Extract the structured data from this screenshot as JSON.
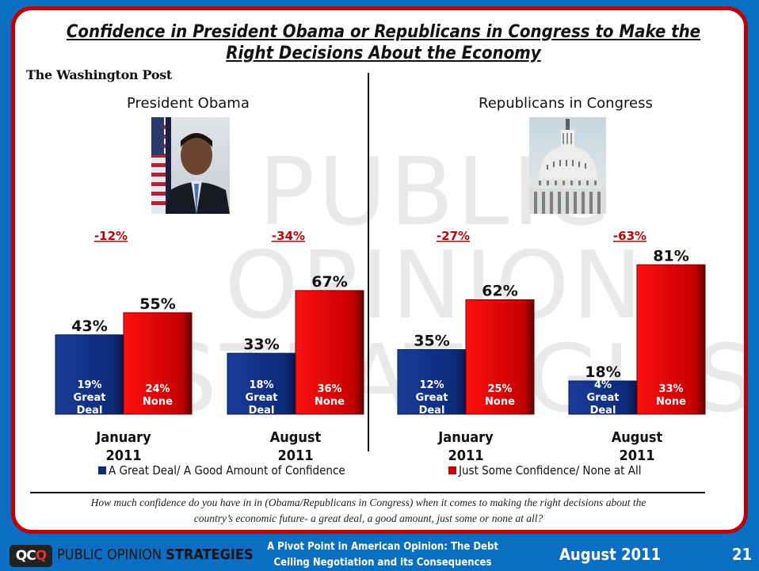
{
  "slide": {
    "title_line1": "Confidence in President Obama or Republicans in Congress to Make the",
    "title_line2": "Right Decisions About the Economy",
    "source": "The Washington Post",
    "watermark_lines": [
      "PUBLIC",
      "OPINION",
      "STRATEGIES"
    ],
    "question_line1": "How much confidence do you have in in (Obama/Republicans in Congress) when it comes to making the right decisions about the",
    "question_line2": "country’s economic future- a great deal, a good amount, just some or none at all?"
  },
  "panels": [
    {
      "title": "President Obama",
      "image": "obama-portrait"
    },
    {
      "title": "Republicans in Congress",
      "image": "capitol-dome"
    }
  ],
  "footer": {
    "logo_text": "QCQ",
    "company_light": "PUBLIC OPINION",
    "company_bold": "STRATEGIES",
    "presentation_line1": "A Pivot Point in American Opinion: The Debt",
    "presentation_line2": "Ceiling Negotiation and its Consequences",
    "date": "August 2011",
    "page": "21"
  },
  "colors": {
    "blue_bar": "#0d2a78",
    "red_bar": "#c40000",
    "net_label": "#c00000",
    "slide_border": "#c00000",
    "background": "#0a6fc2"
  },
  "chart_data": {
    "type": "bar",
    "title": "Confidence in President Obama or Republicans in Congress to Make the Right Decisions About the Economy",
    "xlabel": "",
    "ylabel": "",
    "ylim": [
      0,
      100
    ],
    "grid": false,
    "legend_position": "bottom",
    "groups": [
      {
        "panel": "President Obama",
        "category_line1": "January",
        "category_line2": "2011",
        "net": "-12%",
        "confidence": 43,
        "confidence_sub": 19,
        "confidence_sub_label": "Great Deal",
        "none": 55,
        "none_sub": 24,
        "none_sub_label": "None"
      },
      {
        "panel": "President Obama",
        "category_line1": "August",
        "category_line2": "2011",
        "net": "-34%",
        "confidence": 33,
        "confidence_sub": 18,
        "confidence_sub_label": "Great Deal",
        "none": 67,
        "none_sub": 36,
        "none_sub_label": "None"
      },
      {
        "panel": "Republicans in Congress",
        "category_line1": "January",
        "category_line2": "2011",
        "net": "-27%",
        "confidence": 35,
        "confidence_sub": 12,
        "confidence_sub_label": "Great Deal",
        "none": 62,
        "none_sub": 25,
        "none_sub_label": "None"
      },
      {
        "panel": "Republicans in Congress",
        "category_line1": "August",
        "category_line2": "2011",
        "net": "-63%",
        "confidence": 18,
        "confidence_sub": 4,
        "confidence_sub_label": "Great Deal",
        "none": 81,
        "none_sub": 33,
        "none_sub_label": "None"
      }
    ],
    "series": [
      {
        "name": "A Great Deal/ A Good Amount of Confidence",
        "key": "confidence",
        "color": "#0d2a78"
      },
      {
        "name": "Just Some Confidence/ None at All",
        "key": "none",
        "color": "#c40000"
      }
    ]
  }
}
